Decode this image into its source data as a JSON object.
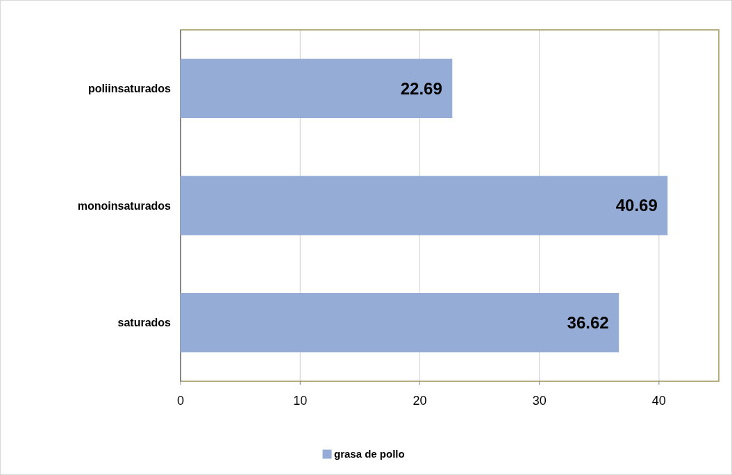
{
  "chart_data": {
    "type": "bar",
    "orientation": "horizontal",
    "categories": [
      "poliinsaturados",
      "monoinsaturados",
      "saturados"
    ],
    "series": [
      {
        "name": "grasa de pollo",
        "color": "#95acd6",
        "values": [
          22.69,
          40.69,
          36.62
        ]
      }
    ],
    "xlim": [
      0,
      45
    ],
    "xticks": [
      0,
      10,
      20,
      30,
      40
    ],
    "grid": "x",
    "legend": "bottom",
    "data_labels": true
  }
}
